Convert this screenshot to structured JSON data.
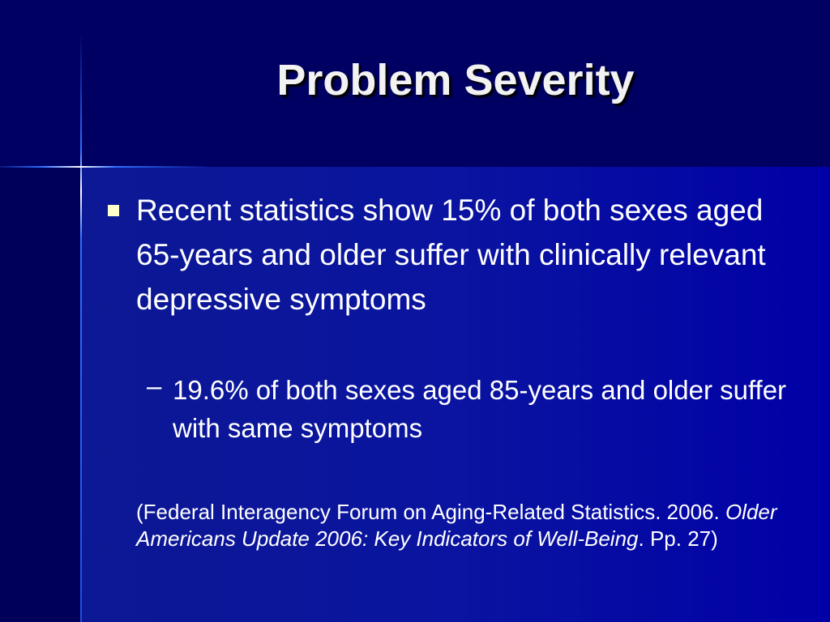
{
  "slide": {
    "title": "Problem Severity",
    "bullet": "Recent statistics show 15% of both sexes aged 65-years and older suffer with clinically relevant depressive symptoms",
    "sub_dash": "–",
    "sub_bullet": "19.6% of both sexes aged 85-years and older suffer with same symptoms",
    "citation": {
      "part1": "(Federal Interagency Forum on Aging-Related Statistics. 2006. ",
      "italic": "Older Americans Update 2006: Key Indicators of Well-Being",
      "part2": ". Pp. 27)"
    }
  },
  "colors": {
    "background": "#000063",
    "content_panel": "#0a14a0",
    "bullet": "#ffffcc",
    "text": "#ffffff"
  }
}
